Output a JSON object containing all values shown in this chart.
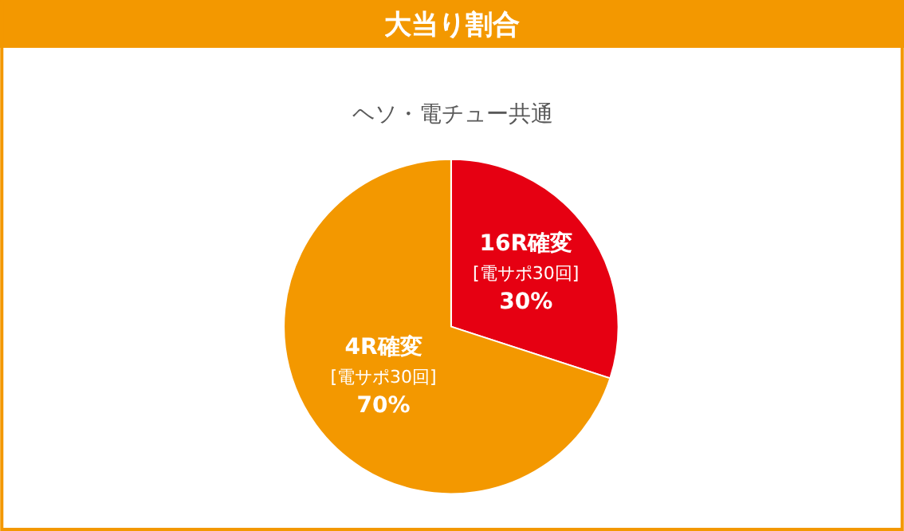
{
  "chart_data": {
    "type": "pie",
    "title": "大当り割合",
    "subtitle": "ヘソ・電チュー共通",
    "categories": [
      "16R確変\n[電サポ30回]",
      "4R確変\n[電サポ30回]"
    ],
    "values": [
      30,
      70
    ],
    "value_labels": [
      "30%",
      "70%"
    ],
    "colors": [
      "#e60012",
      "#f39800"
    ],
    "legend": false
  }
}
